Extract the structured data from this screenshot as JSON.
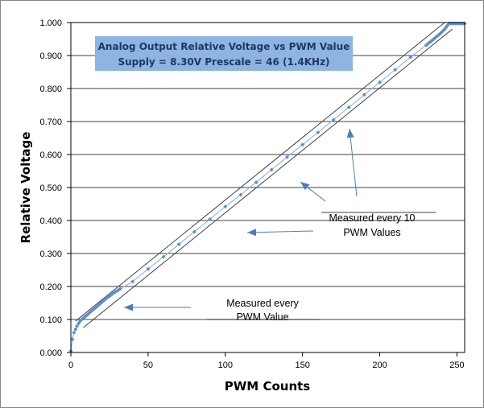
{
  "chart_data": {
    "type": "scatter",
    "title_line1": "Analog Output Relative Voltage vs PWM Value",
    "title_line2": "Supply = 8.30V  Prescale = 46 (1.4KHz)",
    "xlabel": "PWM Counts",
    "ylabel": "Relative Voltage",
    "xlim": [
      0,
      255
    ],
    "ylim": [
      0,
      1
    ],
    "xticks": [
      "0",
      "50",
      "100",
      "150",
      "200",
      "250"
    ],
    "xtick_values": [
      0,
      50,
      100,
      150,
      200,
      250
    ],
    "yticks": [
      "0.000",
      "0.100",
      "0.200",
      "0.300",
      "0.400",
      "0.500",
      "0.600",
      "0.700",
      "0.800",
      "0.900",
      "1.000"
    ],
    "ytick_values": [
      0,
      0.1,
      0.2,
      0.3,
      0.4,
      0.5,
      0.6,
      0.7,
      0.8,
      0.9,
      1.0
    ],
    "grid": "horizontal",
    "series": [
      {
        "name": "Measured every PWM Value (low)",
        "x": [
          0,
          1,
          2,
          3,
          4,
          5,
          6,
          7,
          8,
          9,
          10,
          11,
          12,
          13,
          14,
          15,
          16,
          17,
          18,
          19,
          20,
          21,
          22,
          23,
          24,
          25,
          26,
          27,
          28,
          29,
          30,
          31,
          32
        ],
        "y": [
          0.005,
          0.04,
          0.06,
          0.07,
          0.08,
          0.088,
          0.095,
          0.1,
          0.104,
          0.108,
          0.112,
          0.116,
          0.12,
          0.124,
          0.128,
          0.132,
          0.136,
          0.14,
          0.144,
          0.148,
          0.152,
          0.156,
          0.16,
          0.164,
          0.167,
          0.171,
          0.174,
          0.178,
          0.181,
          0.184,
          0.187,
          0.19,
          0.193
        ]
      },
      {
        "name": "Measured every 10 PWM Values",
        "x": [
          40,
          50,
          60,
          70,
          80,
          90,
          100,
          110,
          120,
          130,
          140,
          150,
          160,
          170,
          180,
          190,
          200,
          210,
          220
        ],
        "y": [
          0.215,
          0.253,
          0.29,
          0.328,
          0.366,
          0.404,
          0.442,
          0.478,
          0.516,
          0.554,
          0.592,
          0.63,
          0.667,
          0.705,
          0.743,
          0.781,
          0.819,
          0.857,
          0.895
        ]
      },
      {
        "name": "Measured every PWM Value (high)",
        "x": [
          230,
          231,
          232,
          233,
          234,
          235,
          236,
          237,
          238,
          239,
          240,
          241,
          242,
          243,
          244,
          245,
          246,
          247,
          248,
          249,
          250,
          251,
          252,
          253,
          254,
          255
        ],
        "y": [
          0.931,
          0.935,
          0.939,
          0.942,
          0.946,
          0.95,
          0.954,
          0.958,
          0.962,
          0.966,
          0.97,
          0.975,
          0.98,
          0.986,
          0.992,
          0.997,
          0.997,
          0.997,
          0.997,
          0.997,
          0.997,
          0.997,
          0.997,
          0.997,
          0.997,
          0.997
        ]
      }
    ],
    "envelope_lines": [
      {
        "name": "upper-bound",
        "x": [
          3,
          242
        ],
        "y": [
          0.095,
          1.0
        ]
      },
      {
        "name": "lower-bound",
        "x": [
          8,
          247
        ],
        "y": [
          0.075,
          0.98
        ]
      }
    ],
    "annotations": [
      {
        "name": "annotation-every-pwm",
        "lines": [
          "Measured every",
          "PWM Value"
        ]
      },
      {
        "name": "annotation-every-10",
        "lines": [
          "Measured every 10",
          "PWM Values"
        ]
      }
    ],
    "colors": {
      "marker": "#5b8fd1",
      "series_line": "#7fb2e5",
      "envelope": "#404040",
      "arrow": "#4a7ebb",
      "grid": "#000000",
      "title_box": "#8db4e2",
      "title_text": "#1f3864"
    }
  }
}
